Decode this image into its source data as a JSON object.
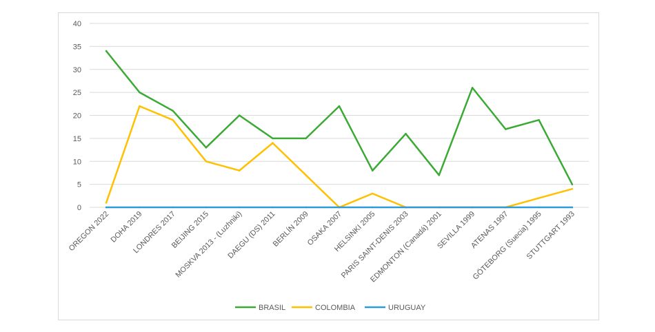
{
  "chart_data": {
    "type": "line",
    "title": "",
    "xlabel": "",
    "ylabel": "",
    "ylim": [
      0,
      40
    ],
    "yticks": [
      0,
      5,
      10,
      15,
      20,
      25,
      30,
      35,
      40
    ],
    "grid": "horizontal",
    "legend_position": "bottom",
    "categories": [
      "OREGON 2022",
      "DOHA 2019",
      "LONDRES 2017",
      "BEIJING 2015",
      "MOSKVA 2013 - (Luzhniki)",
      "DAEGU (DS) 2011",
      "BERLÍN 2009",
      "OSAKA 2007",
      "HELSINKI 2005",
      "PARIS SAINT-DENIS 2003",
      "EDMONTON (Canadá) 2001",
      "SEVILLA 1999",
      "ATENAS 1997",
      "GÖTEBORG (Suecia) 1995",
      "STUTTGART 1993"
    ],
    "series": [
      {
        "name": "BRASIL",
        "color": "#3aaa35",
        "values": [
          34,
          25,
          21,
          13,
          20,
          15,
          15,
          22,
          8,
          16,
          7,
          26,
          17,
          19,
          5
        ]
      },
      {
        "name": "COLOMBIA",
        "color": "#ffc000",
        "values": [
          1,
          22,
          19,
          10,
          8,
          14,
          7,
          0,
          3,
          0,
          0,
          0,
          0,
          2,
          4
        ]
      },
      {
        "name": "URUGUAY",
        "color": "#2e9bd6",
        "values": [
          0,
          0,
          0,
          0,
          0,
          0,
          0,
          0,
          0,
          0,
          0,
          0,
          0,
          0,
          0
        ]
      }
    ]
  }
}
